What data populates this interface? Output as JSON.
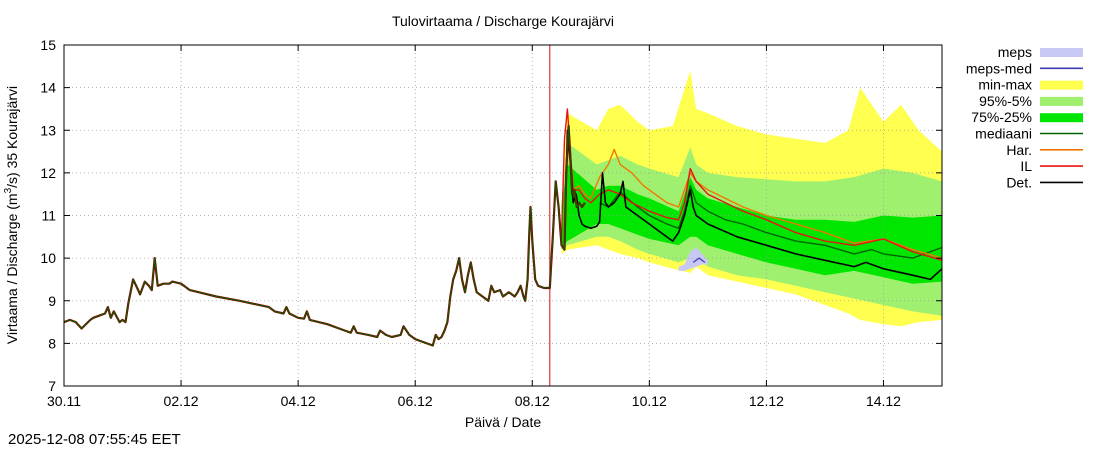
{
  "chart_data": {
    "type": "line",
    "title": "Tulovirtaama / Discharge  Kourajärvi",
    "xlabel": "Päivä / Date",
    "ylabel_prefix": "Virtaama / Discharge (m",
    "ylabel_sup": "3",
    "ylabel_suffix": "/s)  35 Kourajärvi",
    "ylim": [
      7,
      15
    ],
    "xlim": [
      0,
      15
    ],
    "grid": true,
    "legend_position": "top-right outside",
    "y_ticks": [
      "7",
      "8",
      "9",
      "10",
      "11",
      "12",
      "13",
      "14",
      "15"
    ],
    "x_ticks": [
      {
        "day": 0,
        "label": "30.11"
      },
      {
        "day": 2,
        "label": "02.12"
      },
      {
        "day": 4,
        "label": "04.12"
      },
      {
        "day": 6,
        "label": "06.12"
      },
      {
        "day": 8,
        "label": "08.12"
      },
      {
        "day": 10,
        "label": "10.12"
      },
      {
        "day": 12,
        "label": "12.12"
      },
      {
        "day": 14,
        "label": "14.12"
      }
    ],
    "forecast_start_day": 8.3,
    "colors": {
      "meps": "#c8c8f5",
      "meps_med": "#3c3cb4",
      "minmax": "#ffff50",
      "p95_5": "#a0f070",
      "p75_25": "#00e600",
      "median": "#006400",
      "har": "#f07800",
      "il": "#e61414",
      "det": "#000000",
      "forecast_line": "#d01010",
      "grid": "#a0a0a0"
    },
    "legend": [
      {
        "key": "meps",
        "label": "meps",
        "style": "band"
      },
      {
        "key": "meps_med",
        "label": "meps-med",
        "style": "line"
      },
      {
        "key": "minmax",
        "label": "min-max",
        "style": "band"
      },
      {
        "key": "p95_5",
        "label": "95%-5%",
        "style": "band"
      },
      {
        "key": "p75_25",
        "label": "75%-25%",
        "style": "band"
      },
      {
        "key": "median",
        "label": "mediaani",
        "style": "line"
      },
      {
        "key": "har",
        "label": "Har.",
        "style": "line"
      },
      {
        "key": "il",
        "label": "IL",
        "style": "line"
      },
      {
        "key": "det",
        "label": "Det.",
        "style": "line"
      }
    ],
    "series": {
      "observed": [
        [
          0,
          8.5
        ],
        [
          0.1,
          8.55
        ],
        [
          0.2,
          8.5
        ],
        [
          0.3,
          8.35
        ],
        [
          0.45,
          8.55
        ],
        [
          0.5,
          8.6
        ],
        [
          0.6,
          8.65
        ],
        [
          0.7,
          8.7
        ],
        [
          0.75,
          8.85
        ],
        [
          0.8,
          8.6
        ],
        [
          0.85,
          8.75
        ],
        [
          0.95,
          8.5
        ],
        [
          1.0,
          8.55
        ],
        [
          1.05,
          8.5
        ],
        [
          1.1,
          8.95
        ],
        [
          1.18,
          9.5
        ],
        [
          1.25,
          9.3
        ],
        [
          1.3,
          9.15
        ],
        [
          1.38,
          9.45
        ],
        [
          1.45,
          9.35
        ],
        [
          1.5,
          9.25
        ],
        [
          1.55,
          10.0
        ],
        [
          1.6,
          9.35
        ],
        [
          1.7,
          9.4
        ],
        [
          1.8,
          9.4
        ],
        [
          1.85,
          9.45
        ],
        [
          2.0,
          9.4
        ],
        [
          2.05,
          9.35
        ],
        [
          2.1,
          9.3
        ],
        [
          2.15,
          9.25
        ],
        [
          2.3,
          9.2
        ],
        [
          2.6,
          9.1
        ],
        [
          3.0,
          9.0
        ],
        [
          3.5,
          8.85
        ],
        [
          3.6,
          8.75
        ],
        [
          3.75,
          8.7
        ],
        [
          3.8,
          8.85
        ],
        [
          3.85,
          8.7
        ],
        [
          4.0,
          8.6
        ],
        [
          4.1,
          8.58
        ],
        [
          4.15,
          8.75
        ],
        [
          4.2,
          8.55
        ],
        [
          4.5,
          8.45
        ],
        [
          4.7,
          8.35
        ],
        [
          4.8,
          8.3
        ],
        [
          4.9,
          8.25
        ],
        [
          4.95,
          8.4
        ],
        [
          5.0,
          8.25
        ],
        [
          5.2,
          8.2
        ],
        [
          5.35,
          8.15
        ],
        [
          5.4,
          8.3
        ],
        [
          5.5,
          8.2
        ],
        [
          5.6,
          8.15
        ],
        [
          5.75,
          8.2
        ],
        [
          5.8,
          8.4
        ],
        [
          5.85,
          8.3
        ],
        [
          5.9,
          8.2
        ],
        [
          6.0,
          8.1
        ],
        [
          6.2,
          8.0
        ],
        [
          6.3,
          7.95
        ],
        [
          6.35,
          8.2
        ],
        [
          6.4,
          8.1
        ],
        [
          6.45,
          8.15
        ],
        [
          6.5,
          8.3
        ],
        [
          6.55,
          8.5
        ],
        [
          6.6,
          9.1
        ],
        [
          6.65,
          9.5
        ],
        [
          6.7,
          9.7
        ],
        [
          6.75,
          10.0
        ],
        [
          6.8,
          9.5
        ],
        [
          6.85,
          9.2
        ],
        [
          6.9,
          9.6
        ],
        [
          6.95,
          9.9
        ],
        [
          7.0,
          9.5
        ],
        [
          7.05,
          9.2
        ],
        [
          7.15,
          9.1
        ],
        [
          7.25,
          9.0
        ],
        [
          7.3,
          9.35
        ],
        [
          7.35,
          9.2
        ],
        [
          7.45,
          9.25
        ],
        [
          7.5,
          9.1
        ],
        [
          7.6,
          9.2
        ],
        [
          7.7,
          9.1
        ],
        [
          7.75,
          9.2
        ],
        [
          7.8,
          9.35
        ],
        [
          7.85,
          9.1
        ],
        [
          7.88,
          9.0
        ],
        [
          7.92,
          9.5
        ],
        [
          7.95,
          10.6
        ],
        [
          7.97,
          11.2
        ],
        [
          8.0,
          10.4
        ],
        [
          8.05,
          9.5
        ],
        [
          8.1,
          9.35
        ],
        [
          8.2,
          9.3
        ],
        [
          8.3,
          9.3
        ],
        [
          8.35,
          10.5
        ],
        [
          8.4,
          11.8
        ],
        [
          8.45,
          11.2
        ],
        [
          8.5,
          10.3
        ],
        [
          8.55,
          10.2
        ],
        [
          8.58,
          12.0
        ],
        [
          8.62,
          13.1
        ],
        [
          8.65,
          12.4
        ],
        [
          8.68,
          11.5
        ],
        [
          8.72,
          11.6
        ],
        [
          8.76,
          11.2
        ],
        [
          8.8,
          11.3
        ],
        [
          8.85,
          11.2
        ],
        [
          8.9,
          11.3
        ]
      ],
      "det_band": [
        [
          8.55,
          10.2
        ],
        [
          8.6,
          13.0
        ],
        [
          8.65,
          12.3
        ],
        [
          8.7,
          11.3
        ],
        [
          8.75,
          11.5
        ],
        [
          8.8,
          11.0
        ],
        [
          8.85,
          10.8
        ],
        [
          8.9,
          10.75
        ],
        [
          9.0,
          10.7
        ],
        [
          9.1,
          10.75
        ],
        [
          9.15,
          10.85
        ],
        [
          9.2,
          12.0
        ],
        [
          9.25,
          11.3
        ],
        [
          9.3,
          11.2
        ],
        [
          9.4,
          11.3
        ],
        [
          9.5,
          11.5
        ],
        [
          9.55,
          11.8
        ],
        [
          9.6,
          11.2
        ],
        [
          9.8,
          11.0
        ],
        [
          10.0,
          10.8
        ],
        [
          10.2,
          10.6
        ],
        [
          10.4,
          10.4
        ],
        [
          10.5,
          10.6
        ],
        [
          10.6,
          11.0
        ],
        [
          10.7,
          11.6
        ],
        [
          10.75,
          11.2
        ],
        [
          10.8,
          11.0
        ],
        [
          11.0,
          10.8
        ],
        [
          11.5,
          10.5
        ],
        [
          12.0,
          10.3
        ],
        [
          12.5,
          10.1
        ],
        [
          13.0,
          9.95
        ],
        [
          13.5,
          9.8
        ],
        [
          13.7,
          9.9
        ],
        [
          14.0,
          9.75
        ],
        [
          14.5,
          9.6
        ],
        [
          14.8,
          9.5
        ],
        [
          15.0,
          9.75
        ]
      ],
      "median": [
        [
          9.15,
          11.3
        ],
        [
          9.3,
          11.2
        ],
        [
          9.5,
          11.55
        ],
        [
          9.8,
          11.2
        ],
        [
          10.0,
          11.0
        ],
        [
          10.3,
          10.8
        ],
        [
          10.5,
          10.7
        ],
        [
          10.6,
          11.1
        ],
        [
          10.7,
          11.7
        ],
        [
          10.8,
          11.3
        ],
        [
          11.0,
          11.1
        ],
        [
          11.3,
          10.9
        ],
        [
          11.6,
          10.8
        ],
        [
          12.0,
          10.6
        ],
        [
          12.5,
          10.4
        ],
        [
          13.0,
          10.3
        ],
        [
          13.5,
          10.1
        ],
        [
          13.8,
          10.2
        ],
        [
          14.0,
          10.1
        ],
        [
          14.5,
          10.0
        ],
        [
          15.0,
          10.25
        ]
      ],
      "har": [
        [
          8.55,
          10.2
        ],
        [
          8.6,
          12.8
        ],
        [
          8.65,
          12.2
        ],
        [
          8.7,
          11.6
        ],
        [
          8.8,
          11.7
        ],
        [
          8.9,
          11.5
        ],
        [
          9.0,
          11.4
        ],
        [
          9.15,
          11.9
        ],
        [
          9.3,
          12.2
        ],
        [
          9.4,
          12.55
        ],
        [
          9.5,
          12.2
        ],
        [
          9.7,
          12.0
        ],
        [
          9.9,
          11.7
        ],
        [
          10.1,
          11.5
        ],
        [
          10.3,
          11.3
        ],
        [
          10.5,
          11.2
        ],
        [
          10.6,
          11.6
        ],
        [
          10.7,
          12.0
        ],
        [
          10.8,
          11.8
        ],
        [
          11.0,
          11.6
        ],
        [
          11.3,
          11.4
        ],
        [
          11.6,
          11.2
        ],
        [
          12.0,
          11.0
        ],
        [
          12.5,
          10.8
        ],
        [
          13.0,
          10.6
        ],
        [
          13.5,
          10.35
        ],
        [
          14.0,
          10.45
        ],
        [
          14.5,
          10.2
        ],
        [
          15.0,
          10.0
        ]
      ],
      "il": [
        [
          8.5,
          10.5
        ],
        [
          8.55,
          12.8
        ],
        [
          8.6,
          13.5
        ],
        [
          8.65,
          12.5
        ],
        [
          8.7,
          11.6
        ],
        [
          8.8,
          11.6
        ],
        [
          8.9,
          11.4
        ],
        [
          9.0,
          11.3
        ],
        [
          9.15,
          11.5
        ],
        [
          9.3,
          11.6
        ],
        [
          9.5,
          11.5
        ],
        [
          9.7,
          11.3
        ],
        [
          10.0,
          11.1
        ],
        [
          10.3,
          10.95
        ],
        [
          10.5,
          10.9
        ],
        [
          10.6,
          11.3
        ],
        [
          10.7,
          12.1
        ],
        [
          10.8,
          11.8
        ],
        [
          11.0,
          11.5
        ],
        [
          11.3,
          11.3
        ],
        [
          11.6,
          11.1
        ],
        [
          12.0,
          10.9
        ],
        [
          12.5,
          10.6
        ],
        [
          13.0,
          10.4
        ],
        [
          13.5,
          10.3
        ],
        [
          14.0,
          10.45
        ],
        [
          14.5,
          10.15
        ],
        [
          15.0,
          9.95
        ]
      ],
      "meps_med": [
        [
          10.75,
          9.9
        ],
        [
          10.85,
          10.0
        ],
        [
          10.95,
          9.9
        ]
      ],
      "meps_band": {
        "x": [
          10.5,
          10.6,
          10.7,
          10.8,
          10.9,
          11.0
        ],
        "lo": [
          9.7,
          9.7,
          9.75,
          9.8,
          9.85,
          9.85
        ],
        "hi": [
          9.8,
          9.85,
          10.15,
          10.25,
          10.1,
          9.95
        ]
      },
      "minmax_band": {
        "x": [
          8.5,
          8.6,
          9.1,
          9.3,
          9.5,
          9.8,
          10.0,
          10.4,
          10.7,
          10.8,
          11.0,
          11.5,
          12.0,
          12.5,
          13.0,
          13.4,
          13.6,
          14.0,
          14.3,
          14.6,
          15.0
        ],
        "lo": [
          10.1,
          10.2,
          10.3,
          10.2,
          10.1,
          10.0,
          9.9,
          9.75,
          9.65,
          9.8,
          9.6,
          9.45,
          9.3,
          9.15,
          8.9,
          8.7,
          8.55,
          8.45,
          8.4,
          8.5,
          8.55
        ],
        "hi": [
          11.2,
          13.4,
          13.0,
          13.5,
          13.6,
          13.2,
          13.0,
          13.1,
          14.4,
          13.5,
          13.4,
          13.1,
          12.9,
          12.8,
          12.7,
          13.0,
          14.0,
          13.2,
          13.6,
          13.0,
          12.5
        ]
      },
      "p95_band": {
        "x": [
          8.5,
          8.6,
          9.1,
          9.3,
          9.5,
          9.8,
          10.0,
          10.5,
          10.7,
          10.8,
          11.0,
          11.5,
          12.0,
          12.5,
          13.0,
          13.5,
          14.0,
          14.5,
          15.0
        ],
        "lo": [
          10.2,
          10.3,
          10.5,
          10.5,
          10.4,
          10.2,
          10.1,
          9.9,
          10.0,
          10.0,
          9.8,
          9.6,
          9.5,
          9.35,
          9.2,
          9.05,
          8.9,
          8.75,
          8.65
        ],
        "hi": [
          11.3,
          12.7,
          12.2,
          12.3,
          12.4,
          12.2,
          12.1,
          11.9,
          12.6,
          12.2,
          12.0,
          11.9,
          11.85,
          11.8,
          11.8,
          11.9,
          12.1,
          12.0,
          11.8
        ]
      },
      "p75_band": {
        "x": [
          8.5,
          8.6,
          9.1,
          9.3,
          9.5,
          9.8,
          10.0,
          10.5,
          10.7,
          10.8,
          11.0,
          11.5,
          12.0,
          12.5,
          13.0,
          13.5,
          14.0,
          14.5,
          15.0
        ],
        "lo": [
          10.25,
          10.4,
          10.8,
          10.8,
          10.7,
          10.55,
          10.45,
          10.3,
          10.5,
          10.5,
          10.3,
          10.1,
          9.9,
          9.75,
          9.6,
          9.7,
          9.55,
          9.4,
          9.45
        ],
        "hi": [
          11.2,
          12.2,
          11.6,
          11.7,
          11.7,
          11.5,
          11.4,
          11.1,
          11.9,
          11.6,
          11.4,
          11.2,
          11.0,
          10.9,
          10.9,
          10.85,
          11.0,
          10.95,
          11.0
        ]
      }
    }
  },
  "timestamp": "2025-12-08 07:55:45 EET"
}
